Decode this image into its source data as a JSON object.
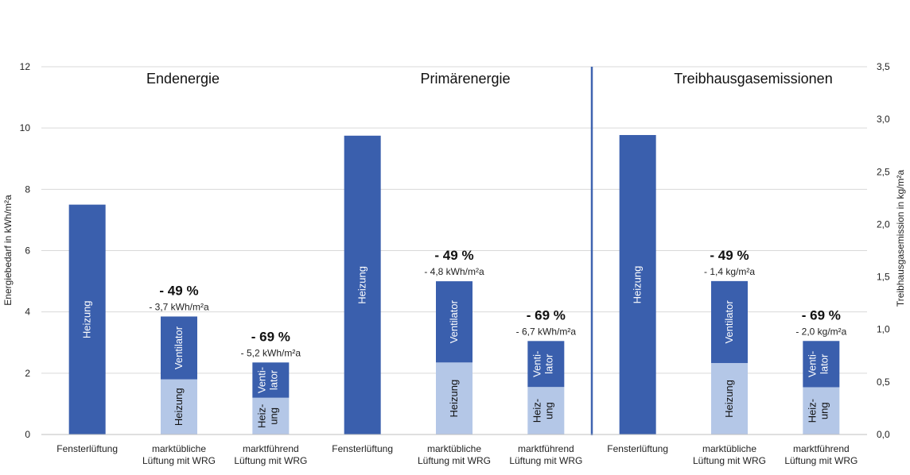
{
  "chart_data": {
    "type": "bar",
    "stacked": true,
    "grid": true,
    "colors": {
      "heizung": "#3a5fad",
      "heizung_light": "#b4c7e7",
      "ventilator": "#3a5fad",
      "divider": "#3f64b0"
    },
    "y_left": {
      "label": "Energiebedarf in kWh/m²a",
      "range": [
        0,
        12
      ],
      "ticks": [
        "0",
        "2",
        "4",
        "6",
        "8",
        "10",
        "12"
      ],
      "tick_values": [
        0,
        2,
        4,
        6,
        8,
        10,
        12
      ]
    },
    "y_right": {
      "label": "Treibhausgasemission in kg/m²a",
      "range": [
        0,
        3.5
      ],
      "ticks": [
        "0,0",
        "0,5",
        "1,0",
        "1,5",
        "2,0",
        "2,5",
        "3,0",
        "3,5"
      ],
      "tick_values": [
        0,
        0.5,
        1.0,
        1.5,
        2.0,
        2.5,
        3.0,
        3.5
      ]
    },
    "sections": [
      {
        "title": "Endenergie",
        "axis": "left",
        "bars": [
          {
            "category": "Fensterlüftung",
            "heizung": 7.5,
            "ventilator": 0,
            "heizung_label": "Heizung",
            "ventilator_label": "",
            "pct": "",
            "abs": ""
          },
          {
            "category": "marktübliche\nLüftung mit WRG",
            "heizung": 1.8,
            "ventilator": 2.05,
            "heizung_label": "Heizung",
            "ventilator_label": "Ventilator",
            "pct": "- 49 %",
            "abs": "- 3,7 kWh/m²a"
          },
          {
            "category": "marktführend\nLüftung mit WRG",
            "heizung": 1.2,
            "ventilator": 1.15,
            "heizung_label": "Heiz-\nung",
            "ventilator_label": "Venti-\nlator",
            "pct": "- 69 %",
            "abs": "- 5,2 kWh/m²a"
          }
        ]
      },
      {
        "title": "Primärenergie",
        "axis": "left",
        "bars": [
          {
            "category": "Fensterlüftung",
            "heizung": 9.75,
            "ventilator": 0,
            "heizung_label": "Heizung",
            "ventilator_label": "",
            "pct": "",
            "abs": ""
          },
          {
            "category": "marktübliche\nLüftung mit WRG",
            "heizung": 2.35,
            "ventilator": 2.65,
            "heizung_label": "Heizung",
            "ventilator_label": "Ventilator",
            "pct": "- 49 %",
            "abs": "- 4,8 kWh/m²a"
          },
          {
            "category": "marktführend\nLüftung mit WRG",
            "heizung": 1.55,
            "ventilator": 1.5,
            "heizung_label": "Heiz-\nung",
            "ventilator_label": "Venti-\nlator",
            "pct": "- 69 %",
            "abs": "- 6,7 kWh/m²a"
          }
        ]
      },
      {
        "title": "Treibhausgasemissionen",
        "axis": "right",
        "bars": [
          {
            "category": "Fensterlüftung",
            "heizung": 2.85,
            "ventilator": 0,
            "heizung_label": "Heizung",
            "ventilator_label": "",
            "pct": "",
            "abs": ""
          },
          {
            "category": "marktübliche\nLüftung mit WRG",
            "heizung": 0.68,
            "ventilator": 0.78,
            "heizung_label": "Heizung",
            "ventilator_label": "Ventilator",
            "pct": "- 49 %",
            "abs": "- 1,4 kg/m²a"
          },
          {
            "category": "marktführend\nLüftung mit WRG",
            "heizung": 0.45,
            "ventilator": 0.44,
            "heizung_label": "Heiz-\nung",
            "ventilator_label": "Venti-\nlator",
            "pct": "- 69 %",
            "abs": "- 2,0 kg/m²a"
          }
        ]
      }
    ]
  }
}
